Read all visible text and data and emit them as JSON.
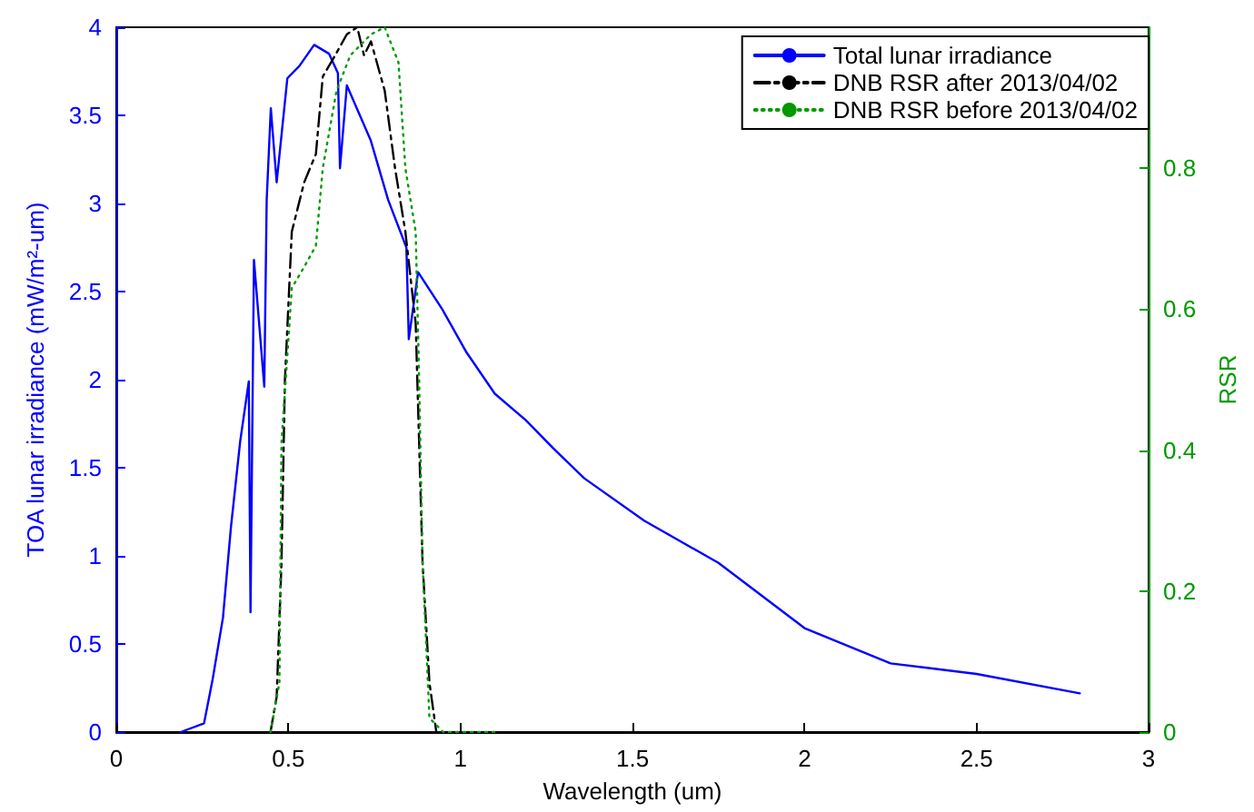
{
  "chart_data": {
    "type": "line",
    "xlabel": "Wavelength (um)",
    "ylabel": "TOA lunar irradiance (mW/m²-um)",
    "y2label": "RSR",
    "xlim": [
      0,
      3
    ],
    "xticks": [
      0,
      0.5,
      1,
      1.5,
      2,
      2.5,
      3
    ],
    "ylim": [
      0,
      4
    ],
    "yticks": [
      0,
      0.5,
      1,
      1.5,
      2,
      2.5,
      3,
      3.5,
      4
    ],
    "y2lim": [
      0,
      1
    ],
    "y2ticks": [
      0,
      0.2,
      0.4,
      0.6,
      0.8
    ],
    "legend": "top right",
    "grid": false,
    "marker": "none",
    "series": [
      {
        "name": "Total lunar irradiance",
        "color": "#0000ff",
        "line_style": "solid",
        "x": [
          0.187,
          0.255,
          0.28,
          0.31,
          0.333,
          0.36,
          0.385,
          0.39,
          0.4,
          0.43,
          0.437,
          0.449,
          0.466,
          0.497,
          0.532,
          0.575,
          0.618,
          0.644,
          0.65,
          0.67,
          0.739,
          0.79,
          0.843,
          0.85,
          0.877,
          0.947,
          1.016,
          1.1,
          1.19,
          1.27,
          1.36,
          1.534,
          1.75,
          2.0,
          2.25,
          2.5,
          2.8
        ],
        "values": [
          0,
          0.05,
          0.3,
          0.65,
          1.16,
          1.65,
          1.99,
          0.68,
          2.68,
          1.96,
          3.02,
          3.54,
          3.12,
          3.71,
          3.78,
          3.9,
          3.85,
          3.74,
          3.2,
          3.67,
          3.36,
          3.02,
          2.75,
          2.23,
          2.61,
          2.4,
          2.16,
          1.92,
          1.77,
          1.61,
          1.44,
          1.2,
          0.96,
          0.59,
          0.39,
          0.33,
          0.22
        ]
      },
      {
        "name": "DNB RSR after 2013/04/02",
        "color": "#000000",
        "line_style": "dashdot",
        "axis": "y2",
        "x": [
          0.448,
          0.466,
          0.48,
          0.49,
          0.51,
          0.546,
          0.58,
          0.6,
          0.63,
          0.67,
          0.7,
          0.72,
          0.74,
          0.78,
          0.81,
          0.84,
          0.87,
          0.88,
          0.89,
          0.91,
          0.93
        ],
        "values": [
          0,
          0.05,
          0.24,
          0.5,
          0.71,
          0.78,
          0.82,
          0.93,
          0.955,
          0.99,
          1.0,
          0.96,
          0.98,
          0.91,
          0.8,
          0.71,
          0.58,
          0.41,
          0.24,
          0.07,
          0
        ]
      },
      {
        "name": "DNB RSR before 2013/04/02",
        "color": "#009900",
        "line_style": "dotted",
        "axis": "y2",
        "x": [
          0.448,
          0.474,
          0.48,
          0.51,
          0.546,
          0.58,
          0.6,
          0.64,
          0.68,
          0.74,
          0.78,
          0.82,
          0.84,
          0.87,
          0.88,
          0.89,
          0.91,
          0.95,
          1.1
        ],
        "values": [
          0,
          0.07,
          0.41,
          0.63,
          0.66,
          0.69,
          0.8,
          0.91,
          0.96,
          0.99,
          1.0,
          0.95,
          0.8,
          0.71,
          0.5,
          0.24,
          0.02,
          0,
          0
        ]
      }
    ]
  }
}
